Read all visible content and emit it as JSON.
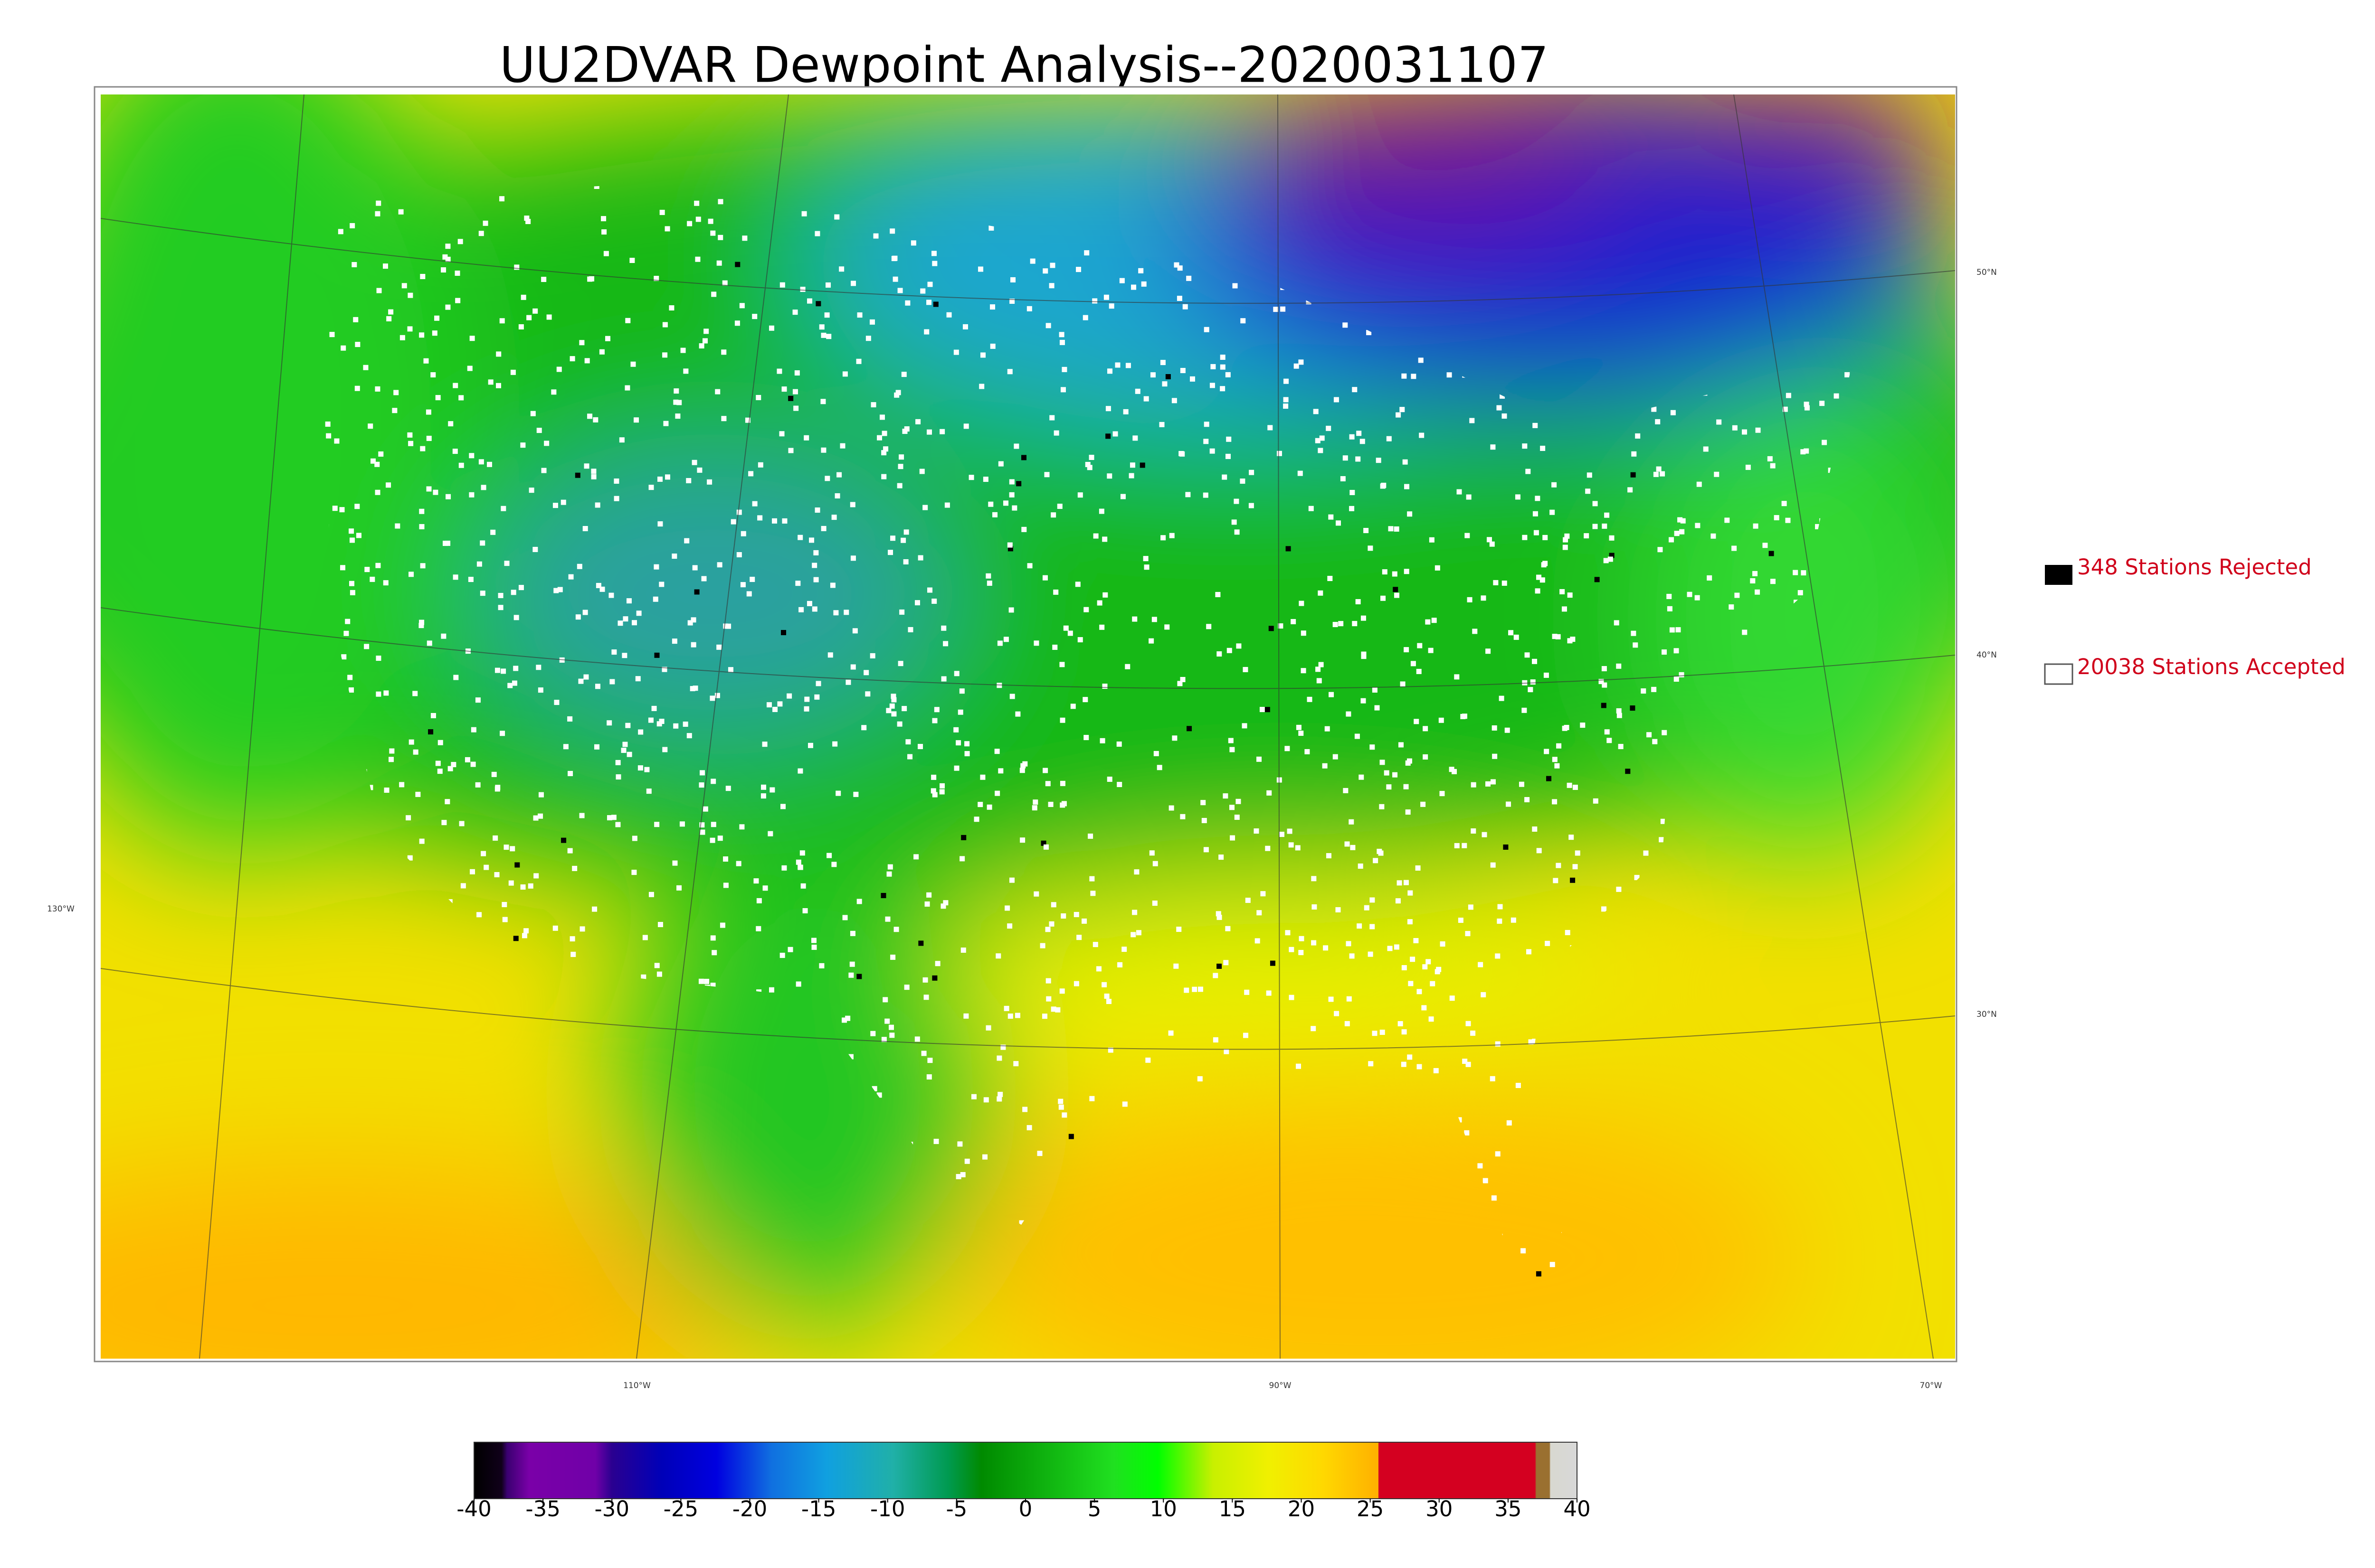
{
  "title": "UU2DVAR Dewpoint Analysis--2020031107",
  "latitude_labels": [
    "50°N",
    "40°N",
    "30°N"
  ],
  "longitude_labels": [
    "130°W",
    "110°W",
    "90°W",
    "70°W"
  ],
  "legend": [
    "348 Stations Rejected",
    "20038 Stations Accepted"
  ],
  "colorbar": {
    "range": [
      -40,
      40
    ],
    "ticks": [
      -40,
      -35,
      -30,
      -25,
      -20,
      -15,
      -10,
      -5,
      0,
      5,
      10,
      15,
      20,
      25,
      30,
      35,
      40
    ]
  }
}
